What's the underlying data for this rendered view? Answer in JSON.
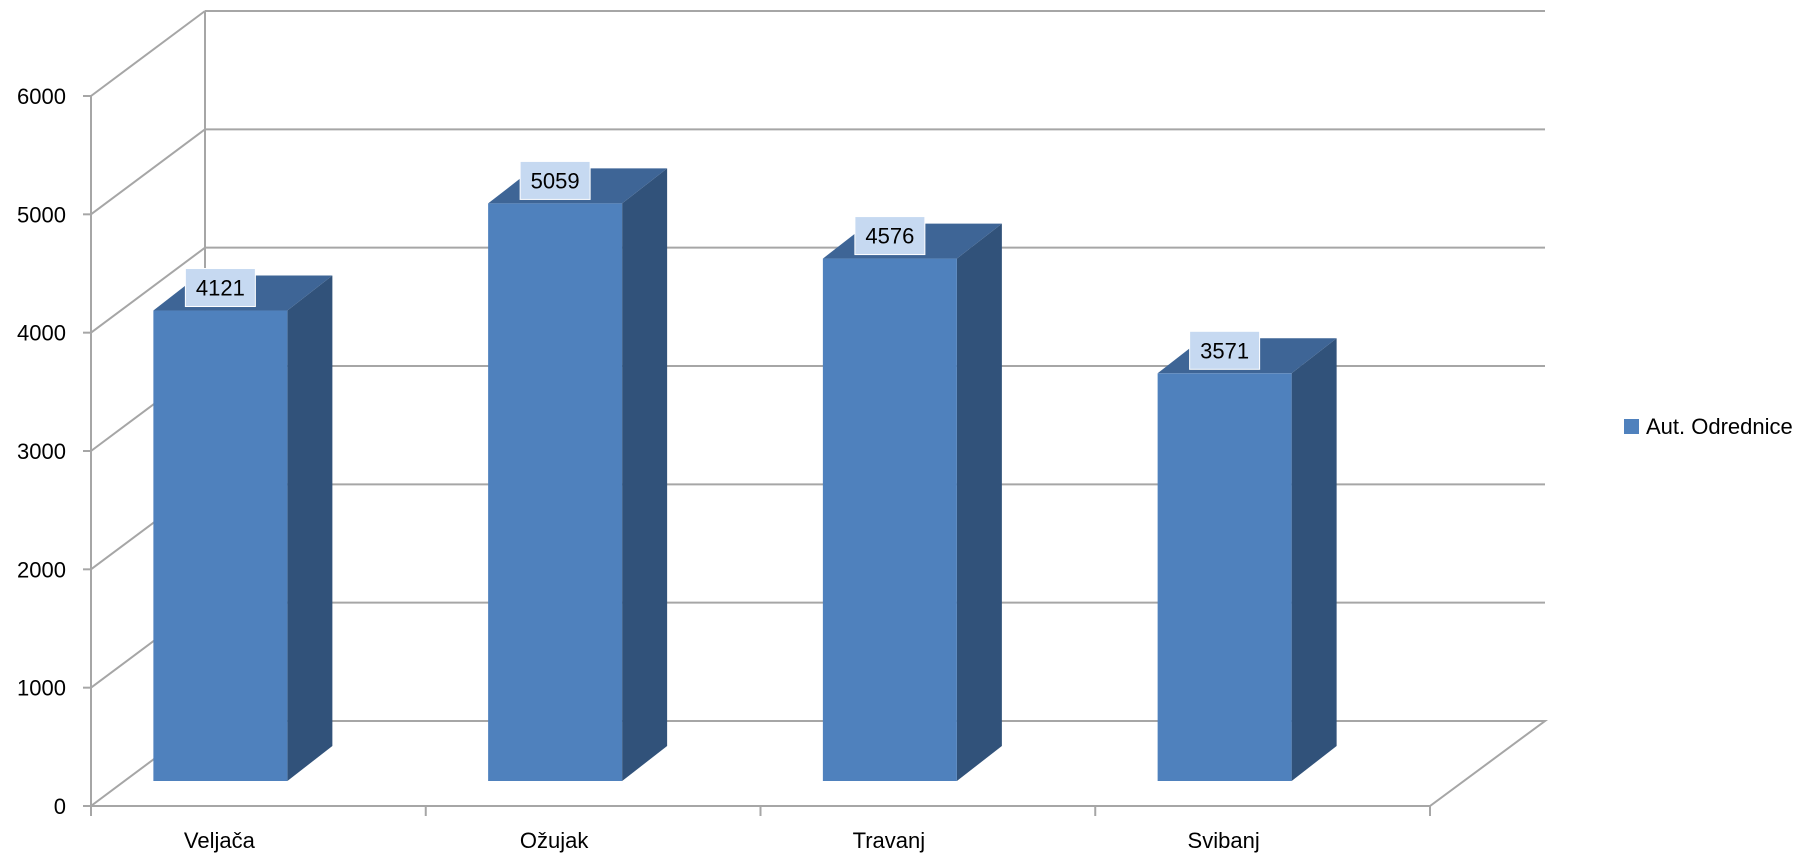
{
  "chart_data": {
    "type": "bar",
    "categories": [
      "Veljača",
      "Ožujak",
      "Travanj",
      "Svibanj"
    ],
    "series": [
      {
        "name": "Aut. Odrednice",
        "values": [
          4121,
          5059,
          4576,
          3571
        ]
      }
    ],
    "ylim": [
      0,
      6000
    ],
    "yticks": [
      "0",
      "1000",
      "2000",
      "3000",
      "4000",
      "5000",
      "6000"
    ],
    "grid": true,
    "legend_position": "right",
    "style": "3d-column",
    "colors": {
      "bar_front": "#4F81BD",
      "bar_side": "#31527A",
      "bar_top": "#3E6596",
      "grid": "#A6A6A6",
      "label_bg": "#C6D9F1"
    }
  },
  "legend": {
    "label": "Aut. Odrednice"
  }
}
